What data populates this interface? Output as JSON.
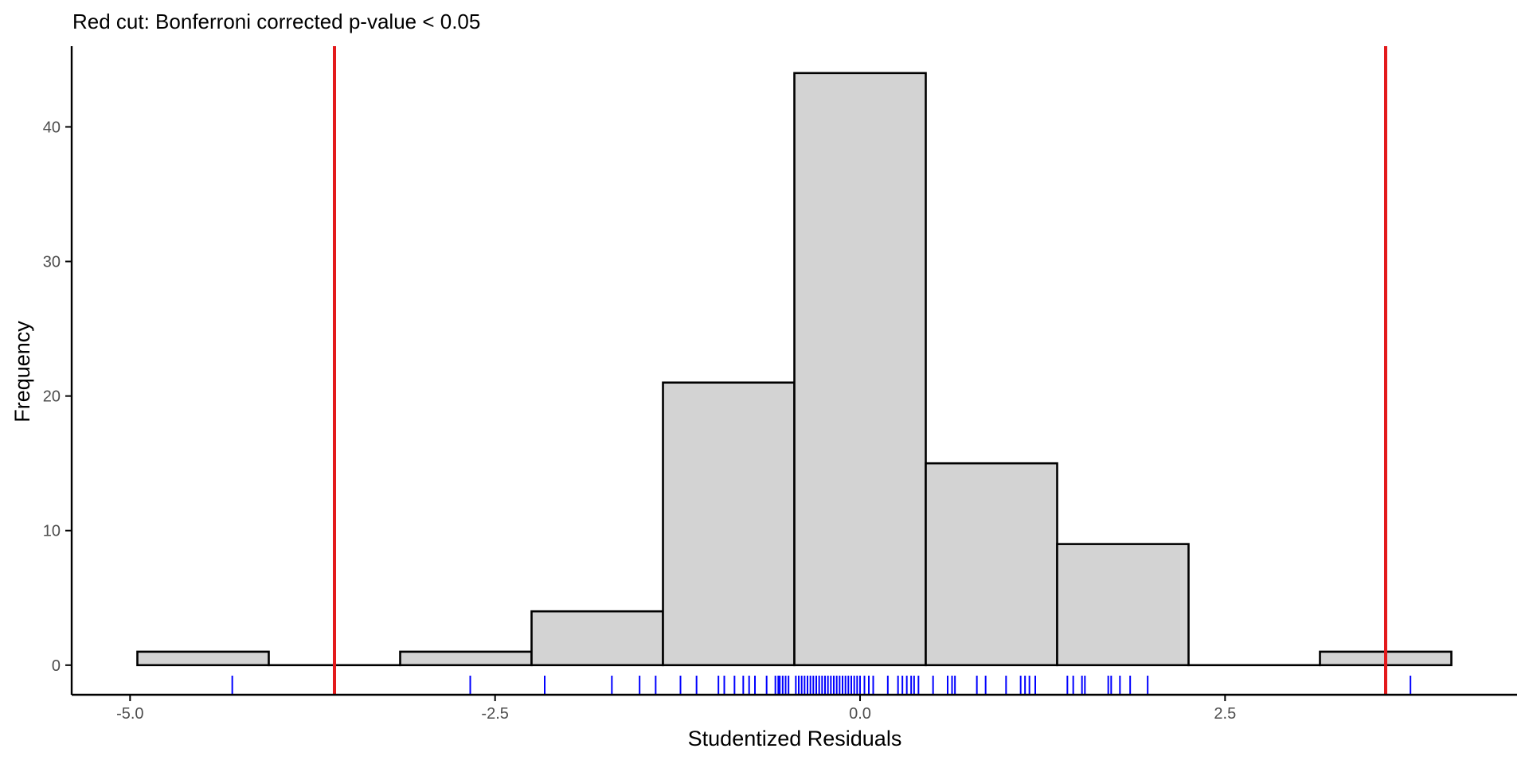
{
  "chart_data": {
    "type": "bar",
    "subtype": "histogram",
    "title": "Red cut: Bonferroni corrected p-value < 0.05",
    "xlabel": "Studentized Residuals",
    "ylabel": "Frequency",
    "xlim": [
      -5.4,
      4.5
    ],
    "ylim": [
      -2.2,
      46
    ],
    "x_ticks": [
      -5.0,
      -2.5,
      0.0,
      2.5
    ],
    "x_tick_labels": [
      "-5.0",
      "-2.5",
      "0.0",
      "2.5"
    ],
    "y_ticks": [
      0,
      10,
      20,
      30,
      40
    ],
    "y_tick_labels": [
      "0",
      "10",
      "20",
      "30",
      "40"
    ],
    "grid": false,
    "bins": [
      {
        "x0": -4.95,
        "x1": -4.05,
        "count": 1
      },
      {
        "x0": -4.05,
        "x1": -3.15,
        "count": 0
      },
      {
        "x0": -3.15,
        "x1": -2.25,
        "count": 1
      },
      {
        "x0": -2.25,
        "x1": -1.35,
        "count": 4
      },
      {
        "x0": -1.35,
        "x1": -0.45,
        "count": 21
      },
      {
        "x0": -0.45,
        "x1": 0.45,
        "count": 44
      },
      {
        "x0": 0.45,
        "x1": 1.35,
        "count": 15
      },
      {
        "x0": 1.35,
        "x1": 2.25,
        "count": 9
      },
      {
        "x0": 2.25,
        "x1": 3.15,
        "count": 0
      },
      {
        "x0": 3.15,
        "x1": 4.05,
        "count": 1
      }
    ],
    "cutoffs": [
      -3.6,
      3.6
    ],
    "rug": [
      -4.3,
      -2.67,
      -2.16,
      -1.7,
      -1.51,
      -1.4,
      -1.23,
      -1.12,
      -0.97,
      -0.93,
      -0.86,
      -0.8,
      -0.76,
      -0.72,
      -0.64,
      -0.58,
      -0.56,
      -0.55,
      -0.53,
      -0.51,
      -0.49,
      -0.44,
      -0.42,
      -0.4,
      -0.38,
      -0.36,
      -0.34,
      -0.32,
      -0.3,
      -0.28,
      -0.26,
      -0.24,
      -0.22,
      -0.2,
      -0.18,
      -0.16,
      -0.14,
      -0.12,
      -0.1,
      -0.08,
      -0.06,
      -0.04,
      -0.02,
      0.0,
      0.03,
      0.06,
      0.09,
      0.19,
      0.26,
      0.29,
      0.32,
      0.35,
      0.37,
      0.4,
      0.5,
      0.6,
      0.63,
      0.65,
      0.8,
      0.86,
      1.0,
      1.1,
      1.13,
      1.16,
      1.2,
      1.42,
      1.46,
      1.52,
      1.54,
      1.7,
      1.72,
      1.78,
      1.85,
      1.97,
      3.77
    ],
    "colors": {
      "bar_fill": "#d3d3d3",
      "bar_stroke": "#000000",
      "cutoff_line": "#e31a1c",
      "rug": "#0000ff",
      "axis": "#000000",
      "tick_label": "#4d4d4d"
    }
  }
}
